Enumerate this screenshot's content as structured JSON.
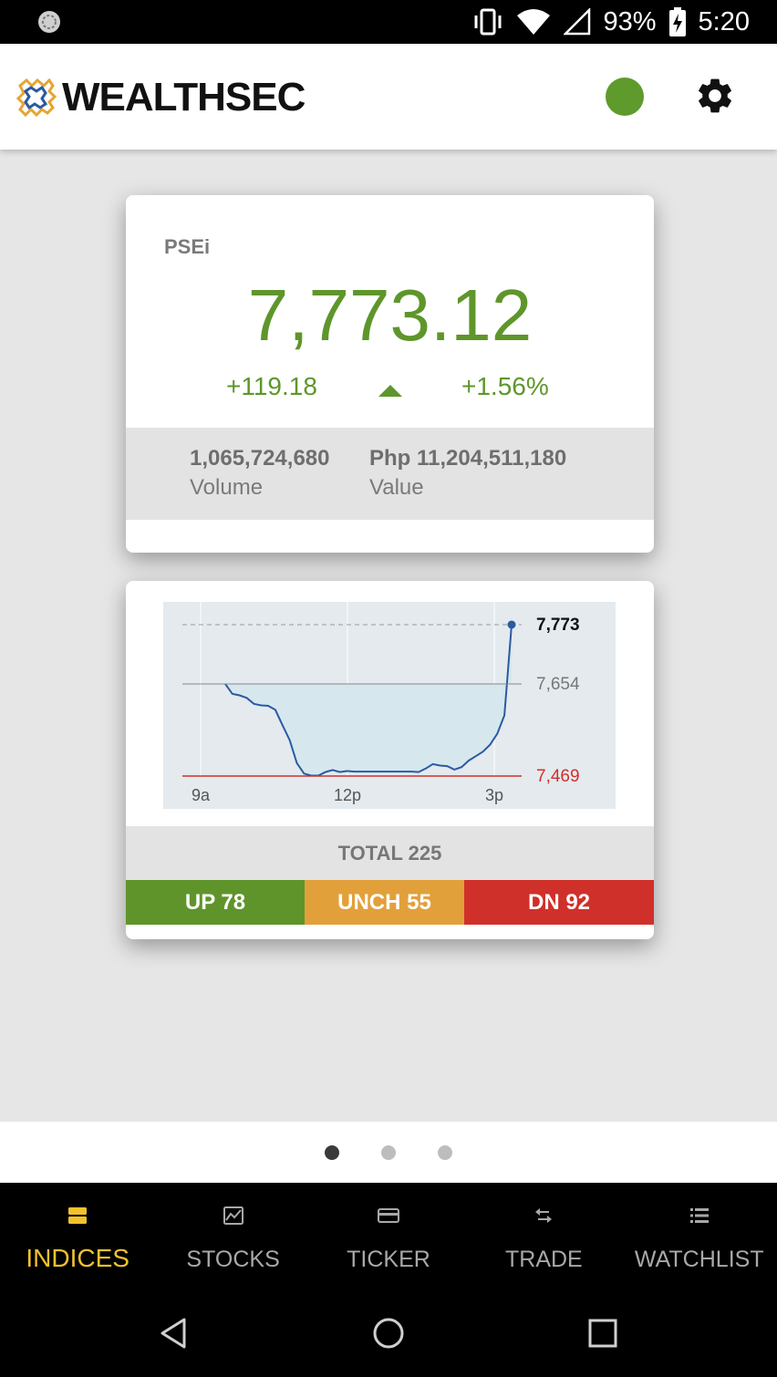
{
  "status_bar": {
    "battery": "93%",
    "time": "5:20",
    "icons": [
      "sync-icon",
      "vibrate-icon",
      "wifi-icon",
      "signal-icon",
      "battery-charging-icon"
    ]
  },
  "app_bar": {
    "logo_text": "WEALTHSEC",
    "connection_status_color": "#5f9a2c",
    "settings_icon": "gear-icon"
  },
  "index_card": {
    "name": "PSEi",
    "value": "7,773.12",
    "change": "+119.18",
    "change_pct": "+1.56%",
    "direction_icon": "triangle-up-icon",
    "volume": "1,065,724,680",
    "volume_label": "Volume",
    "value_traded": "Php 11,204,511,180",
    "value_label": "Value"
  },
  "chart_card": {
    "labels": {
      "high": "7,773",
      "prev_close": "7,654",
      "low": "7,469",
      "x_ticks": [
        "9a",
        "12p",
        "3p"
      ]
    },
    "total": "TOTAL 225",
    "up": "UP 78",
    "unch": "UNCH 55",
    "dn": "DN 92"
  },
  "chart_data": {
    "type": "line",
    "title": "",
    "xlabel": "",
    "ylabel": "",
    "x_tick_labels": [
      "9a",
      "12p",
      "3p"
    ],
    "reference_lines": {
      "high": 7773,
      "previous_close": 7654,
      "low": 7469
    },
    "ylim": [
      7469,
      7773
    ],
    "x": [
      0,
      1,
      2,
      3,
      4,
      5,
      6,
      7,
      8,
      9,
      10,
      11,
      12,
      13,
      14,
      15,
      16,
      17,
      18,
      19,
      20,
      21,
      22,
      23,
      24,
      25,
      26,
      27,
      28,
      29,
      30,
      31,
      32,
      33,
      34,
      35,
      36,
      37,
      38,
      39,
      40
    ],
    "series": [
      {
        "values": [
          7654,
          7634,
          7631,
          7626,
          7614,
          7611,
          7610,
          7602,
          7571,
          7541,
          7495,
          7474,
          7470,
          7470,
          7477,
          7481,
          7477,
          7479,
          7478,
          7478,
          7478,
          7478,
          7478,
          7478,
          7478,
          7478,
          7478,
          7477,
          7484,
          7493,
          7490,
          7489,
          7482,
          7487,
          7500,
          7509,
          7518,
          7532,
          7554,
          7591,
          7773
        ]
      }
    ],
    "colors": {
      "line": "#2b5aa3",
      "fill": "#d6e8ee",
      "high_line": "#999999",
      "prev_close_line": "#888888",
      "low_line": "#d0302a"
    }
  },
  "pager": {
    "pages": 3,
    "active_index": 0
  },
  "bottom_nav": {
    "items": [
      {
        "label": "INDICES",
        "icon": "indices-icon",
        "active": true
      },
      {
        "label": "STOCKS",
        "icon": "stocks-chart-icon",
        "active": false
      },
      {
        "label": "TICKER",
        "icon": "ticker-card-icon",
        "active": false
      },
      {
        "label": "TRADE",
        "icon": "trade-arrows-icon",
        "active": false
      },
      {
        "label": "WATCHLIST",
        "icon": "list-icon",
        "active": false
      }
    ]
  },
  "system_nav": [
    "back-icon",
    "home-icon",
    "recents-icon"
  ]
}
